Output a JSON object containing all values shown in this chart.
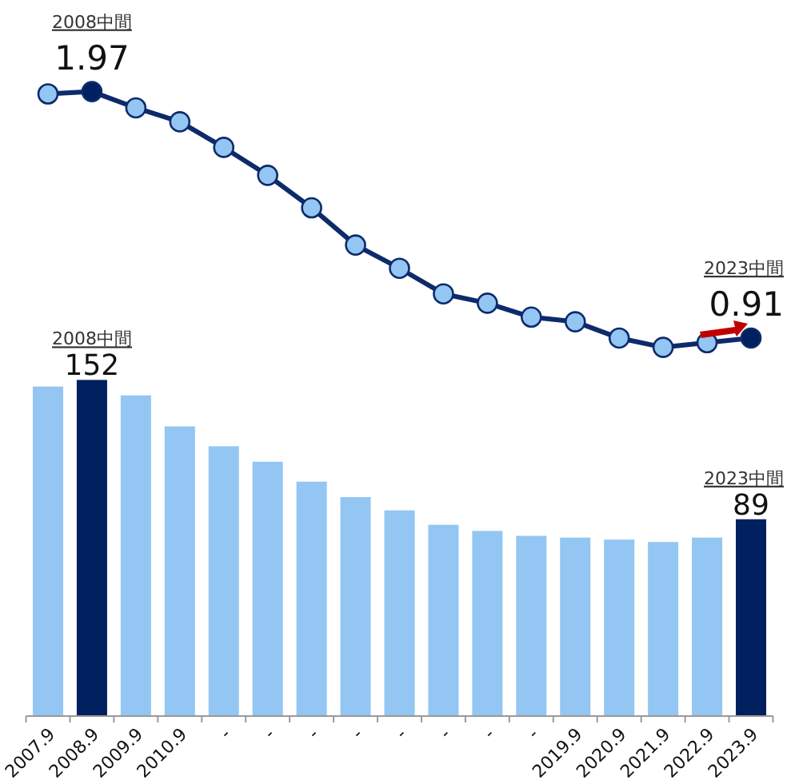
{
  "chart_data": [
    {
      "type": "line",
      "categories": [
        null,
        null,
        null,
        null,
        null,
        null,
        null,
        null,
        null,
        null,
        null,
        null,
        null,
        null,
        null,
        null,
        null
      ],
      "series": [
        {
          "color": "#0d2a6b",
          "colors": [
            "#93c6f2",
            "#002060",
            "#93c6f2",
            "#93c6f2",
            "#93c6f2",
            "#93c6f2",
            "#93c6f2",
            "#93c6f2",
            "#93c6f2",
            "#93c6f2",
            "#93c6f2",
            "#93c6f2",
            "#93c6f2",
            "#93c6f2",
            "#93c6f2",
            "#93c6f2",
            "#002060"
          ],
          "values": [
            1.96,
            1.97,
            1.9,
            1.84,
            1.73,
            1.61,
            1.47,
            1.31,
            1.21,
            1.1,
            1.06,
            1.0,
            0.98,
            0.91,
            0.87,
            0.89,
            0.91
          ],
          "value_labels": [
            null,
            "1.97",
            null,
            null,
            null,
            null,
            null,
            null,
            null,
            null,
            null,
            null,
            null,
            null,
            null,
            null,
            "0.91"
          ]
        }
      ],
      "marker": "circle",
      "line_style": "solid",
      "tick_labels": false,
      "annotations": [
        "2008中間",
        "2023中間"
      ]
    },
    {
      "type": "bar",
      "categories": [
        "2007.9",
        "2008.9",
        "2009.9",
        "2010.9",
        "-",
        "-",
        "-",
        "-",
        "-",
        "-",
        "-",
        "-",
        "2019.9",
        "2020.9",
        "2021.9",
        "2022.9",
        "2023.9"
      ],
      "values": [
        149,
        152,
        145,
        131,
        122,
        115,
        106,
        99,
        93,
        86.5,
        83.7,
        81.5,
        80.7,
        79.8,
        78.7,
        80.7,
        89
      ],
      "colors": [
        "#93c6f2",
        "#002060",
        "#93c6f2",
        "#93c6f2",
        "#93c6f2",
        "#93c6f2",
        "#93c6f2",
        "#93c6f2",
        "#93c6f2",
        "#93c6f2",
        "#93c6f2",
        "#93c6f2",
        "#93c6f2",
        "#93c6f2",
        "#93c6f2",
        "#93c6f2",
        "#002060"
      ],
      "value_labels": [
        null,
        "152",
        null,
        null,
        null,
        null,
        null,
        null,
        null,
        null,
        null,
        null,
        null,
        null,
        null,
        null,
        "89"
      ],
      "tick_labels": "x",
      "annotations": [
        "2008中間",
        "2023中間"
      ]
    }
  ]
}
